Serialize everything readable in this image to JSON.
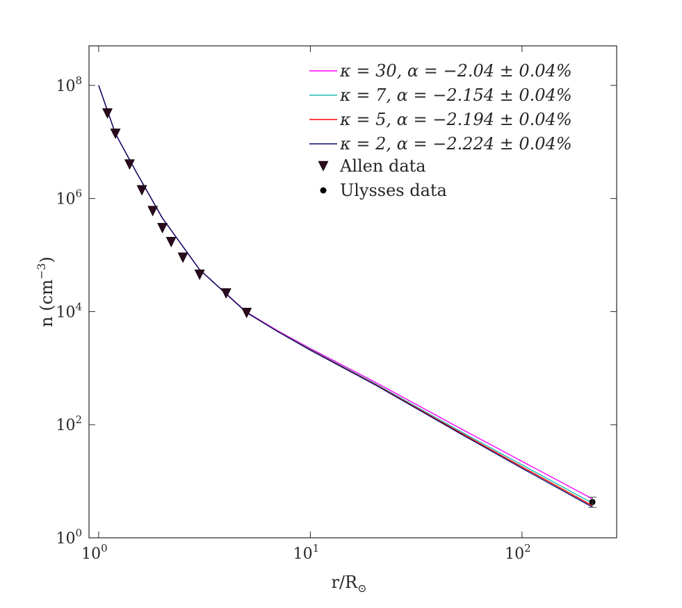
{
  "chart_data": {
    "type": "line",
    "x_scale": "log",
    "y_scale": "log",
    "xlim": [
      0.9,
      280
    ],
    "ylim": [
      1,
      500000000
    ],
    "xlabel": {
      "base": "r/R",
      "sub": "⊙"
    },
    "ylabel": {
      "base": "n  (cm",
      "sup": "−3",
      "end": ")"
    },
    "x_ticks": [
      {
        "base": "10",
        "exp": "0",
        "value": 1
      },
      {
        "base": "10",
        "exp": "1",
        "value": 10
      },
      {
        "base": "10",
        "exp": "2",
        "value": 100
      }
    ],
    "y_ticks": [
      {
        "base": "10",
        "exp": "0",
        "value": 1
      },
      {
        "base": "10",
        "exp": "2",
        "value": 100
      },
      {
        "base": "10",
        "exp": "4",
        "value": 10000
      },
      {
        "base": "10",
        "exp": "6",
        "value": 1000000
      },
      {
        "base": "10",
        "exp": "8",
        "value": 100000000
      }
    ],
    "series": [
      {
        "name": "κ = 30,  α = −2.04 ± 0.04%",
        "color": "#ff00ff",
        "x": [
          1.0,
          1.2,
          1.5,
          2.0,
          3.0,
          5.0,
          7.0,
          10,
          20,
          50,
          100,
          215
        ],
        "y": [
          100000000,
          14000000,
          3000000,
          450000,
          55000,
          9800,
          4600,
          2230,
          580,
          90,
          22.5,
          4.9
        ]
      },
      {
        "name": "κ = 7,  α = −2.154 ± 0.04%",
        "color": "#17bfb0",
        "x": [
          1.0,
          1.2,
          1.5,
          2.0,
          3.0,
          5.0,
          7.0,
          10,
          20,
          50,
          100,
          215
        ],
        "y": [
          100000000,
          14000000,
          3000000,
          450000,
          55000,
          9700,
          4500,
          2150,
          545,
          80,
          19.5,
          4.1
        ]
      },
      {
        "name": "κ = 5,  α = −2.194 ± 0.04%",
        "color": "#ff0000",
        "x": [
          1.0,
          1.2,
          1.5,
          2.0,
          3.0,
          5.0,
          7.0,
          10,
          20,
          50,
          100,
          215
        ],
        "y": [
          100000000,
          14000000,
          3000000,
          450000,
          55000,
          9650,
          4480,
          2110,
          530,
          76,
          18,
          3.7
        ]
      },
      {
        "name": "κ = 2,  α = −2.224 ± 0.04%",
        "color": "#0a0a6e",
        "x": [
          1.0,
          1.2,
          1.5,
          2.0,
          3.0,
          5.0,
          7.0,
          10,
          20,
          50,
          100,
          215
        ],
        "y": [
          100000000,
          14000000,
          3000000,
          450000,
          55000,
          9600,
          4450,
          2080,
          520,
          73,
          17,
          3.5
        ]
      }
    ],
    "scatter": [
      {
        "name": "Allen data",
        "marker": "triangle-down",
        "color": "#2b0a1e",
        "x": [
          1.1,
          1.2,
          1.4,
          1.6,
          1.8,
          2.0,
          2.2,
          2.5,
          3.0,
          4.0,
          5.0
        ],
        "y": [
          32000000,
          14000000,
          4000000,
          1400000,
          600000,
          300000,
          170000,
          90000,
          45000,
          21000,
          9500
        ]
      },
      {
        "name": "Ulysses data",
        "marker": "dot",
        "color": "#000000",
        "x": [
          215
        ],
        "y": [
          4.3
        ],
        "err_low": [
          3.45
        ],
        "err_high": [
          5.25
        ]
      }
    ],
    "legend_position": "top-right"
  }
}
